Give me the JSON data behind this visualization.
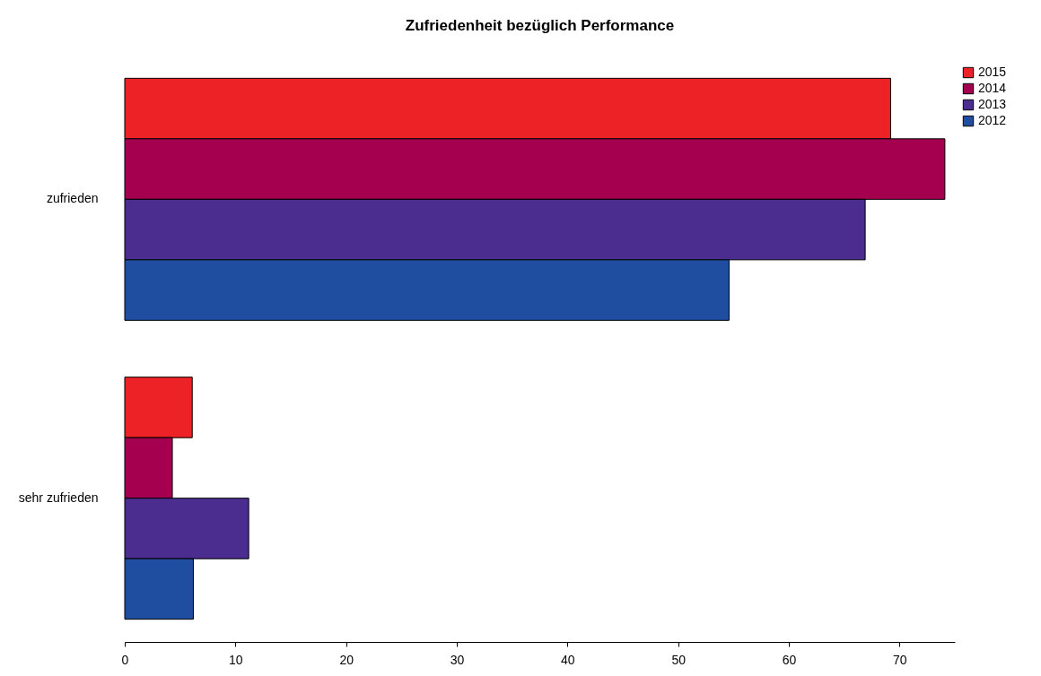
{
  "chart_data": {
    "type": "bar",
    "orientation": "horizontal",
    "title": "Zufriedenheit bezüglich Performance",
    "categories": [
      "zufrieden",
      "sehr zufrieden"
    ],
    "series": [
      {
        "name": "2015",
        "color": "#ec2227",
        "values": [
          69.2,
          6.1
        ]
      },
      {
        "name": "2014",
        "color": "#a50050",
        "values": [
          74.1,
          4.3
        ]
      },
      {
        "name": "2013",
        "color": "#4a2d8e",
        "values": [
          66.9,
          11.2
        ]
      },
      {
        "name": "2012",
        "color": "#1f4ea0",
        "values": [
          54.6,
          6.2
        ]
      }
    ],
    "xlim": [
      0,
      75
    ],
    "xticks": [
      0,
      10,
      20,
      30,
      40,
      50,
      60,
      70
    ],
    "grid": false,
    "legend": "top right"
  }
}
